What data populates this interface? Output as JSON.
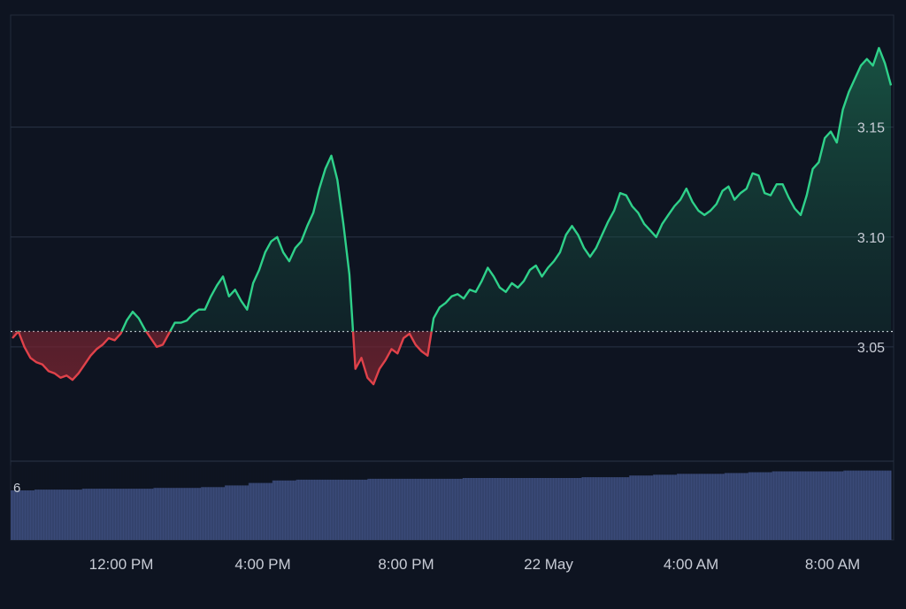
{
  "chart_data": {
    "type": "area",
    "baseline": 3.057,
    "y_ticks": [
      3.05,
      3.1,
      3.15
    ],
    "y_tick_labels": [
      "3.05",
      "3.10",
      "3.15"
    ],
    "ylim": [
      2.998,
      3.201
    ],
    "x_tick_labels": [
      "12:00 PM",
      "4:00 PM",
      "8:00 PM",
      "22 May",
      "4:00 AM",
      "8:00 AM"
    ],
    "volume_axis_label": "6",
    "colors": {
      "above": "#2fd18a",
      "below": "#e0424a",
      "volume": "#3a4a78",
      "grid": "#2a3346",
      "text": "#c8ccd6",
      "background": "#0e1421"
    },
    "series": [
      {
        "values": [
          3.054,
          3.057,
          3.05,
          3.045,
          3.043,
          3.042,
          3.039,
          3.038,
          3.036,
          3.037,
          3.035,
          3.038,
          3.042,
          3.046,
          3.049,
          3.051,
          3.054,
          3.053,
          3.056,
          3.062,
          3.066,
          3.063,
          3.058,
          3.054,
          3.05,
          3.051,
          3.056,
          3.061,
          3.061,
          3.062,
          3.065,
          3.067,
          3.067,
          3.073,
          3.078,
          3.082,
          3.073,
          3.076,
          3.071,
          3.067,
          3.079,
          3.085,
          3.093,
          3.098,
          3.1,
          3.093,
          3.089,
          3.095,
          3.098,
          3.105,
          3.111,
          3.122,
          3.131,
          3.137,
          3.126,
          3.106,
          3.083,
          3.04,
          3.045,
          3.036,
          3.033,
          3.04,
          3.044,
          3.049,
          3.047,
          3.054,
          3.056,
          3.051,
          3.048,
          3.046,
          3.063,
          3.068,
          3.07,
          3.073,
          3.074,
          3.072,
          3.076,
          3.075,
          3.08,
          3.086,
          3.082,
          3.077,
          3.075,
          3.079,
          3.077,
          3.08,
          3.085,
          3.087,
          3.082,
          3.086,
          3.089,
          3.093,
          3.101,
          3.105,
          3.101,
          3.095,
          3.091,
          3.095,
          3.101,
          3.107,
          3.112,
          3.12,
          3.119,
          3.114,
          3.111,
          3.106,
          3.103,
          3.1,
          3.106,
          3.11,
          3.114,
          3.117,
          3.122,
          3.116,
          3.112,
          3.11,
          3.112,
          3.115,
          3.121,
          3.123,
          3.117,
          3.12,
          3.122,
          3.129,
          3.128,
          3.12,
          3.119,
          3.124,
          3.124,
          3.118,
          3.113,
          3.11,
          3.119,
          3.131,
          3.134,
          3.145,
          3.148,
          3.143,
          3.158,
          3.166,
          3.172,
          3.178,
          3.181,
          3.178,
          3.186,
          3.179,
          3.169
        ]
      }
    ],
    "volume": [
      6,
      6.1,
      6.1,
      6.2,
      6.2,
      6.2,
      6.3,
      6.3,
      6.4,
      6.6,
      6.9,
      7.2,
      7.3,
      7.3,
      7.3,
      7.4,
      7.4,
      7.4,
      7.4,
      7.5,
      7.5,
      7.5,
      7.5,
      7.5,
      7.6,
      7.6,
      7.8,
      7.9,
      8.0,
      8.0,
      8.1,
      8.2,
      8.3,
      8.3,
      8.3,
      8.4,
      8.4
    ]
  }
}
